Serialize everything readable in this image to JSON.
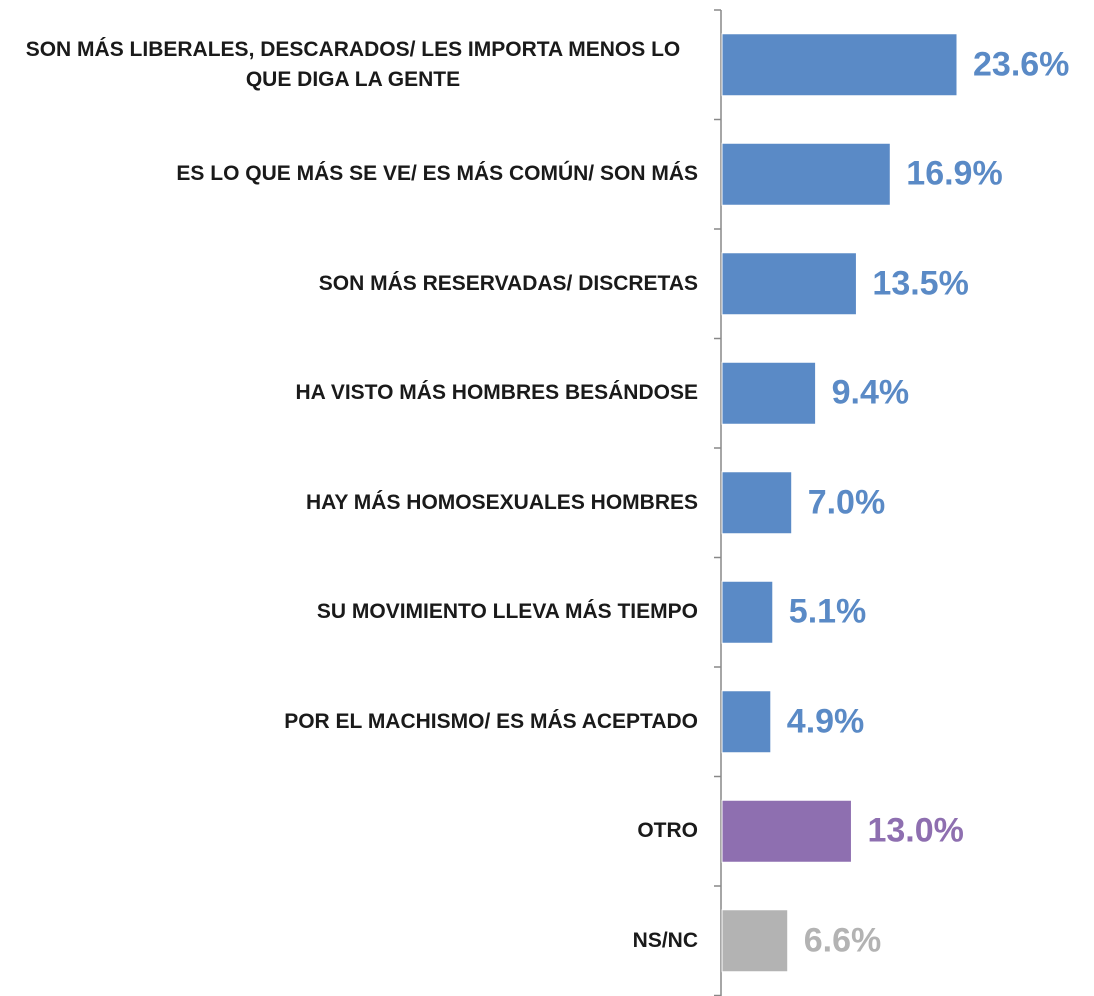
{
  "chart_data": {
    "type": "barh",
    "categories": [
      "SON MÁS LIBERALES, DESCARADOS/ LES IMPORTA MENOS LO QUE DIGA LA GENTE",
      "ES LO QUE MÁS SE VE/ ES MÁS COMÚN/ SON MÁS",
      "SON MÁS RESERVADAS/ DISCRETAS",
      "HA VISTO MÁS HOMBRES BESÁNDOSE",
      "HAY MÁS HOMOSEXUALES HOMBRES",
      "SU MOVIMIENTO LLEVA MÁS TIEMPO",
      "POR EL MACHISMO/ ES MÁS ACEPTADO",
      "OTRO",
      "NS/NC"
    ],
    "values": [
      23.6,
      16.9,
      13.5,
      9.4,
      7.0,
      5.1,
      4.9,
      13.0,
      6.6
    ],
    "value_labels": [
      "23.6%",
      "16.9%",
      "13.5%",
      "9.4%",
      "7.0%",
      "5.1%",
      "4.9%",
      "13.0%",
      "6.6%"
    ],
    "colors": [
      "#5a8ac6",
      "#5a8ac6",
      "#5a8ac6",
      "#5a8ac6",
      "#5a8ac6",
      "#5a8ac6",
      "#5a8ac6",
      "#8e6fb0",
      "#b3b3b3"
    ]
  }
}
